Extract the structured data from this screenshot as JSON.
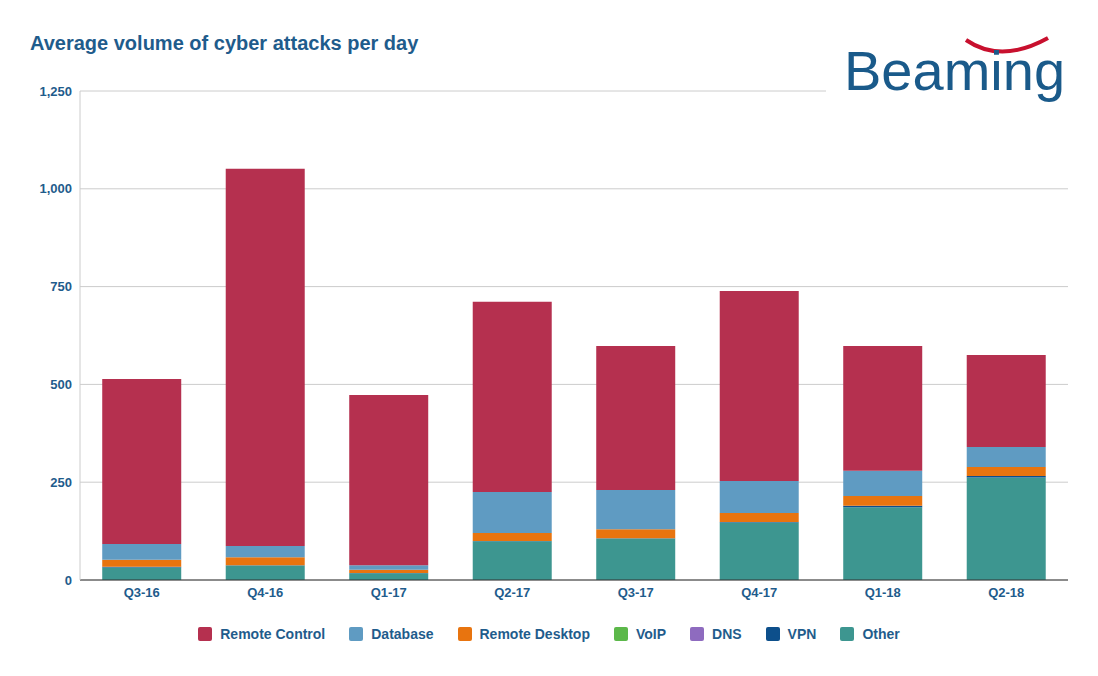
{
  "chart_data": {
    "type": "bar",
    "title": "Average volume of cyber attacks per day",
    "annotations": [
      "Beaming"
    ],
    "categories": [
      "Q3-16",
      "Q4-16",
      "Q1-17",
      "Q2-17",
      "Q3-17",
      "Q4-17",
      "Q1-18",
      "Q2-18"
    ],
    "stacked": true,
    "grid": true,
    "legend": "bottom",
    "ylim": [
      0,
      1250
    ],
    "yticks": [
      0,
      250,
      500,
      750,
      {
        "value": 1000,
        "label": "1,000"
      },
      {
        "value": 1250,
        "label": "1,250"
      }
    ],
    "series": [
      {
        "name": "Remote Control",
        "color": "#b5304f",
        "values": [
          422,
          964,
          435,
          486,
          368,
          486,
          319,
          235
        ]
      },
      {
        "name": "Database",
        "color": "#5f9bc2",
        "values": [
          40,
          29,
          12,
          105,
          100,
          82,
          64,
          51
        ]
      },
      {
        "name": "Remote Desktop",
        "color": "#e8740f",
        "values": [
          18,
          20,
          8,
          20,
          23,
          23,
          25,
          23
        ]
      },
      {
        "name": "VoIP",
        "color": "#5cb84a",
        "values": [
          0,
          0,
          0,
          0,
          0,
          0,
          0,
          0
        ]
      },
      {
        "name": "DNS",
        "color": "#8e6bbf",
        "values": [
          0,
          0,
          0,
          0,
          0,
          0,
          0,
          0
        ]
      },
      {
        "name": "VPN",
        "color": "#0d4f8b",
        "values": [
          2,
          1,
          1,
          1,
          1,
          1,
          4,
          4
        ]
      },
      {
        "name": "Other",
        "color": "#3d9690",
        "values": [
          32,
          37,
          17,
          99,
          106,
          147,
          186,
          262
        ]
      }
    ]
  }
}
